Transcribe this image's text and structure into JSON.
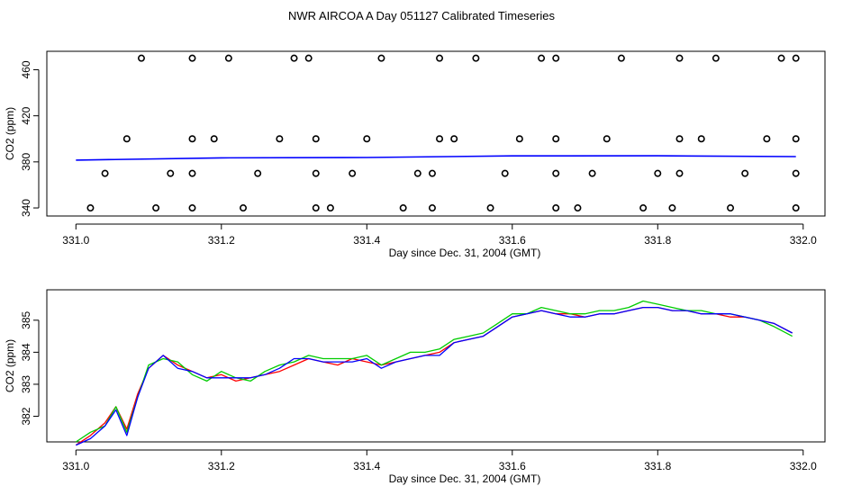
{
  "title": "NWR AIRCOA A  Day 051127  Calibrated Timeseries",
  "chart_data": [
    {
      "type": "scatter",
      "xlabel": "Day since Dec. 31, 2004 (GMT)",
      "ylabel": "CO2 (ppm)",
      "xlim": [
        330.96,
        332.03
      ],
      "ylim": [
        333,
        476
      ],
      "xticks": [
        331.0,
        331.2,
        331.4,
        331.6,
        331.8,
        332.0
      ],
      "yticks": [
        340,
        380,
        420,
        460
      ],
      "xtick_labels": [
        "331.0",
        "331.2",
        "331.4",
        "331.6",
        "331.8",
        "332.0"
      ],
      "ytick_labels": [
        "340",
        "380",
        "420",
        "460"
      ],
      "series": [
        {
          "color": "#0000ff",
          "marker": "none",
          "x": [
            331.0,
            331.2,
            331.4,
            331.6,
            331.8,
            331.99
          ],
          "y": [
            381.5,
            383.5,
            383.8,
            385.2,
            385.3,
            384.6
          ]
        },
        {
          "color": "#000000",
          "marker": "circle",
          "points": [
            [
              331.09,
              470
            ],
            [
              331.16,
              470
            ],
            [
              331.21,
              470
            ],
            [
              331.3,
              470
            ],
            [
              331.32,
              470
            ],
            [
              331.42,
              470
            ],
            [
              331.5,
              470
            ],
            [
              331.55,
              470
            ],
            [
              331.64,
              470
            ],
            [
              331.66,
              470
            ],
            [
              331.75,
              470
            ],
            [
              331.83,
              470
            ],
            [
              331.88,
              470
            ],
            [
              331.97,
              470
            ],
            [
              331.99,
              470
            ],
            [
              331.07,
              400
            ],
            [
              331.16,
              400
            ],
            [
              331.19,
              400
            ],
            [
              331.28,
              400
            ],
            [
              331.33,
              400
            ],
            [
              331.4,
              400
            ],
            [
              331.5,
              400
            ],
            [
              331.52,
              400
            ],
            [
              331.61,
              400
            ],
            [
              331.66,
              400
            ],
            [
              331.73,
              400
            ],
            [
              331.83,
              400
            ],
            [
              331.86,
              400
            ],
            [
              331.95,
              400
            ],
            [
              331.99,
              400
            ],
            [
              331.04,
              370
            ],
            [
              331.13,
              370
            ],
            [
              331.16,
              370
            ],
            [
              331.25,
              370
            ],
            [
              331.33,
              370
            ],
            [
              331.38,
              370
            ],
            [
              331.47,
              370
            ],
            [
              331.49,
              370
            ],
            [
              331.59,
              370
            ],
            [
              331.66,
              370
            ],
            [
              331.71,
              370
            ],
            [
              331.8,
              370
            ],
            [
              331.83,
              370
            ],
            [
              331.92,
              370
            ],
            [
              331.99,
              370
            ],
            [
              331.02,
              340
            ],
            [
              331.11,
              340
            ],
            [
              331.16,
              340
            ],
            [
              331.23,
              340
            ],
            [
              331.33,
              340
            ],
            [
              331.35,
              340
            ],
            [
              331.45,
              340
            ],
            [
              331.49,
              340
            ],
            [
              331.57,
              340
            ],
            [
              331.66,
              340
            ],
            [
              331.69,
              340
            ],
            [
              331.78,
              340
            ],
            [
              331.82,
              340
            ],
            [
              331.9,
              340
            ],
            [
              331.99,
              340
            ]
          ]
        }
      ]
    },
    {
      "type": "line",
      "xlabel": "Day since Dec. 31, 2004 (GMT)",
      "ylabel": "CO2 (ppm)",
      "xlim": [
        330.96,
        332.03
      ],
      "ylim": [
        381.2,
        385.95
      ],
      "xticks": [
        331.0,
        331.2,
        331.4,
        331.6,
        331.8,
        332.0
      ],
      "yticks": [
        382,
        383,
        384,
        385
      ],
      "xtick_labels": [
        "331.0",
        "331.2",
        "331.4",
        "331.6",
        "331.8",
        "332.0"
      ],
      "ytick_labels": [
        "382",
        "383",
        "384",
        "385"
      ],
      "x": [
        331.0,
        331.02,
        331.04,
        331.055,
        331.07,
        331.085,
        331.1,
        331.12,
        331.14,
        331.16,
        331.18,
        331.2,
        331.22,
        331.24,
        331.26,
        331.28,
        331.3,
        331.32,
        331.34,
        331.36,
        331.38,
        331.4,
        331.42,
        331.44,
        331.46,
        331.48,
        331.5,
        331.52,
        331.54,
        331.56,
        331.58,
        331.6,
        331.62,
        331.64,
        331.66,
        331.68,
        331.7,
        331.72,
        331.74,
        331.76,
        331.78,
        331.8,
        331.82,
        331.84,
        331.86,
        331.88,
        331.9,
        331.92,
        331.94,
        331.96,
        331.985
      ],
      "series": [
        {
          "color": "#ff0000",
          "y": [
            381.1,
            381.4,
            381.8,
            382.3,
            381.6,
            382.7,
            383.5,
            383.9,
            383.6,
            383.4,
            383.2,
            383.3,
            383.1,
            383.2,
            383.3,
            383.4,
            383.6,
            383.8,
            383.7,
            383.6,
            383.8,
            383.7,
            383.6,
            383.7,
            383.8,
            383.9,
            384.0,
            384.3,
            384.4,
            384.5,
            384.8,
            385.1,
            385.2,
            385.3,
            385.2,
            385.2,
            385.1,
            385.2,
            385.2,
            385.3,
            385.4,
            385.4,
            385.3,
            385.3,
            385.2,
            385.2,
            385.1,
            385.1,
            385.0,
            384.9,
            384.6
          ]
        },
        {
          "color": "#00cc00",
          "y": [
            381.2,
            381.5,
            381.7,
            382.3,
            381.5,
            382.6,
            383.6,
            383.8,
            383.7,
            383.3,
            383.1,
            383.4,
            383.2,
            383.1,
            383.4,
            383.6,
            383.7,
            383.9,
            383.8,
            383.8,
            383.8,
            383.9,
            383.6,
            383.8,
            384.0,
            384.0,
            384.1,
            384.4,
            384.5,
            384.6,
            384.9,
            385.2,
            385.2,
            385.4,
            385.3,
            385.2,
            385.2,
            385.3,
            385.3,
            385.4,
            385.6,
            385.5,
            385.4,
            385.3,
            385.3,
            385.2,
            385.2,
            385.1,
            385.0,
            384.8,
            384.5
          ]
        },
        {
          "color": "#0000ff",
          "y": [
            381.1,
            381.3,
            381.7,
            382.2,
            381.4,
            382.6,
            383.5,
            383.9,
            383.5,
            383.4,
            383.2,
            383.2,
            383.2,
            383.2,
            383.3,
            383.5,
            383.8,
            383.8,
            383.7,
            383.7,
            383.7,
            383.8,
            383.5,
            383.7,
            383.8,
            383.9,
            383.9,
            384.3,
            384.4,
            384.5,
            384.8,
            385.1,
            385.2,
            385.3,
            385.2,
            385.1,
            385.1,
            385.2,
            385.2,
            385.3,
            385.4,
            385.4,
            385.3,
            385.3,
            385.2,
            385.2,
            385.2,
            385.1,
            385.0,
            384.9,
            384.6
          ]
        }
      ]
    }
  ]
}
